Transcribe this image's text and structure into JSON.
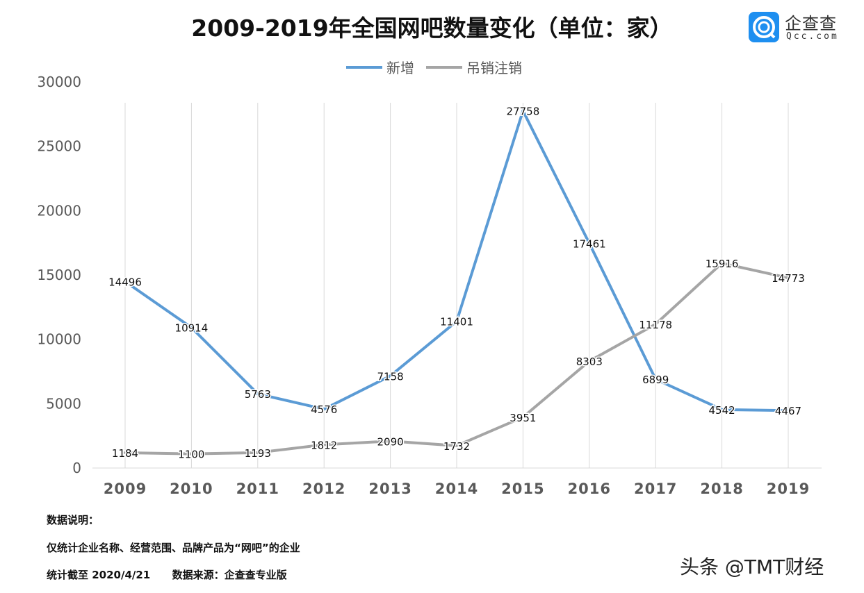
{
  "title": "2009-2019年全国网吧数量变化（单位：家）",
  "logo": {
    "name": "企查查",
    "domain": "Qcc.com",
    "color": "#1e8ff0"
  },
  "chart_data": {
    "type": "line",
    "title": "2009-2019年全国网吧数量变化（单位：家）",
    "categories": [
      "2009",
      "2010",
      "2011",
      "2012",
      "2013",
      "2014",
      "2015",
      "2016",
      "2017",
      "2018",
      "2019"
    ],
    "series": [
      {
        "name": "新增",
        "color": "#5b9bd5",
        "values": [
          14496,
          10914,
          5763,
          4576,
          7158,
          11401,
          27758,
          17461,
          6899,
          4542,
          4467
        ]
      },
      {
        "name": "吊销注销",
        "color": "#a5a5a5",
        "values": [
          1184,
          1100,
          1193,
          1812,
          2090,
          1732,
          3951,
          8303,
          11178,
          15916,
          14773
        ]
      }
    ],
    "ylim": [
      0,
      30000
    ],
    "yticks": [
      0,
      5000,
      10000,
      15000,
      20000,
      25000,
      30000
    ],
    "grid": "vertical",
    "legend": "top-center",
    "data_labels": true
  },
  "notes": {
    "heading": "数据说明：",
    "line1": "仅统计企业名称、经营范围、品牌产品为“网吧”的企业",
    "line2": "统计截至 2020/4/21      数据来源：企查查专业版"
  },
  "watermark": "头条 @TMT财经"
}
